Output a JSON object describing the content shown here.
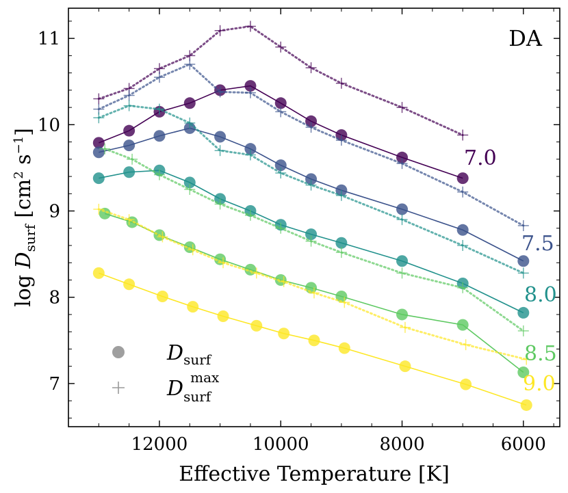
{
  "chart_data": {
    "type": "line",
    "panel_label": "DA",
    "xlabel": "Effective Temperature [K]",
    "ylabel": "log D_surf [cm^2 s^-1]",
    "ylabel_parts": {
      "prefix": "log ",
      "var": "D",
      "sub": "surf",
      "units_open": " [cm",
      "units_sup1": "2",
      "units_mid": " s",
      "units_sup2": "−1",
      "units_close": "]"
    },
    "xlim": [
      13500,
      5400
    ],
    "ylim": [
      6.5,
      11.35
    ],
    "x_ticks": [
      12000,
      10000,
      8000,
      6000
    ],
    "y_ticks": [
      7,
      8,
      9,
      10,
      11
    ],
    "legend": {
      "position": "bottom-left",
      "entries": [
        {
          "marker": "circle",
          "var": "D",
          "sub": "surf",
          "sup": ""
        },
        {
          "marker": "plus",
          "var": "D",
          "sub": "surf",
          "sup": "max"
        }
      ]
    },
    "series": [
      {
        "name": "7.0",
        "label": "7.0",
        "color": "#440154",
        "x": [
          13000,
          12500,
          12000,
          11500,
          11000,
          10500,
          10000,
          9500,
          9000,
          8000,
          7000
        ],
        "D_surf": [
          9.79,
          9.93,
          10.15,
          10.25,
          10.4,
          10.45,
          10.25,
          10.04,
          9.88,
          9.62,
          9.38
        ],
        "D_surf_max": [
          10.3,
          10.42,
          10.65,
          10.8,
          11.09,
          11.14,
          10.9,
          10.66,
          10.48,
          10.2,
          9.88
        ]
      },
      {
        "name": "7.5",
        "label": "7.5",
        "color": "#3b528b",
        "x": [
          13000,
          12500,
          12000,
          11500,
          11000,
          10500,
          10000,
          9500,
          9000,
          8000,
          7000,
          6000
        ],
        "D_surf": [
          9.68,
          9.76,
          9.87,
          9.96,
          9.86,
          9.72,
          9.53,
          9.37,
          9.24,
          9.02,
          8.78,
          8.42
        ],
        "D_surf_max": [
          10.18,
          10.34,
          10.55,
          10.7,
          10.38,
          10.37,
          10.15,
          9.97,
          9.82,
          9.55,
          9.22,
          8.83
        ]
      },
      {
        "name": "8.0",
        "label": "8.0",
        "color": "#21918c",
        "x": [
          13000,
          12500,
          12000,
          11500,
          11000,
          10500,
          10000,
          9500,
          9000,
          8000,
          7000,
          6000
        ],
        "D_surf": [
          9.38,
          9.45,
          9.47,
          9.33,
          9.14,
          9.0,
          8.84,
          8.73,
          8.63,
          8.42,
          8.16,
          7.82
        ],
        "D_surf_max": [
          10.08,
          10.22,
          10.18,
          10.02,
          9.7,
          9.65,
          9.44,
          9.3,
          9.18,
          8.9,
          8.6,
          8.28
        ]
      },
      {
        "name": "8.5",
        "label": "8.5",
        "color": "#5ec962",
        "x": [
          12900,
          12450,
          12000,
          11500,
          11000,
          10500,
          10000,
          9500,
          9000,
          8000,
          7000,
          6000
        ],
        "D_surf": [
          8.97,
          8.87,
          8.72,
          8.58,
          8.44,
          8.32,
          8.2,
          8.11,
          8.01,
          7.8,
          7.68,
          7.13
        ],
        "D_surf_max": [
          9.72,
          9.6,
          9.42,
          9.25,
          9.08,
          8.95,
          8.8,
          8.65,
          8.52,
          8.28,
          8.11,
          7.61
        ]
      },
      {
        "name": "9.0",
        "label": "9.0",
        "color": "#fde725",
        "x": [
          13000,
          12500,
          11950,
          11450,
          10950,
          10400,
          9950,
          9450,
          8950,
          7950,
          6950,
          5950
        ],
        "D_surf": [
          8.28,
          8.15,
          8.01,
          7.89,
          7.78,
          7.67,
          7.58,
          7.5,
          7.41,
          7.2,
          6.99,
          6.75
        ],
        "D_surf_max": [
          9.02,
          8.9,
          8.7,
          8.55,
          8.4,
          8.28,
          8.18,
          8.05,
          7.94,
          7.65,
          7.45,
          7.28
        ]
      }
    ]
  }
}
